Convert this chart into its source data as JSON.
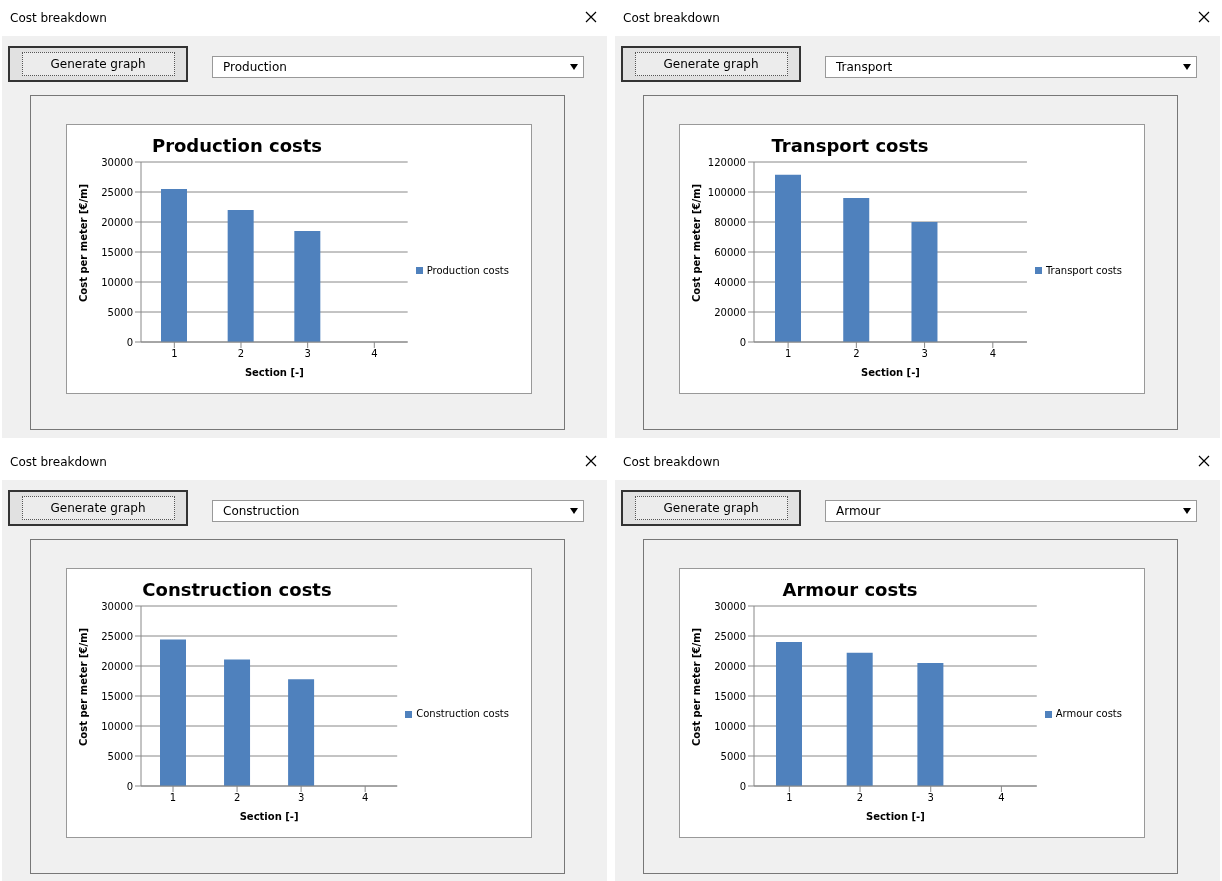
{
  "chart_data": [
    {
      "type": "bar",
      "title": "Production costs",
      "xlabel": "Section [-]",
      "ylabel": "Cost per meter [€/m]",
      "categories": [
        "1",
        "2",
        "3",
        "4"
      ],
      "series": [
        {
          "name": "Production costs",
          "color": "#4f81bd",
          "values": [
            25500,
            22000,
            18500,
            null
          ]
        }
      ],
      "ylim": [
        0,
        30000
      ],
      "yticks": [
        0,
        5000,
        10000,
        15000,
        20000,
        25000,
        30000
      ],
      "grid": "y",
      "legend": "right",
      "annotations": [
        "Cost breakdown",
        "Generate graph",
        "Production"
      ]
    },
    {
      "type": "bar",
      "title": "Transport costs",
      "xlabel": "Section [-]",
      "ylabel": "Cost per meter [€/m]",
      "categories": [
        "1",
        "2",
        "3",
        "4"
      ],
      "series": [
        {
          "name": "Transport costs",
          "color": "#4f81bd",
          "values": [
            111500,
            96000,
            80000,
            null
          ]
        }
      ],
      "ylim": [
        0,
        120000
      ],
      "yticks": [
        0,
        20000,
        40000,
        60000,
        80000,
        100000,
        120000
      ],
      "grid": "y",
      "legend": "right",
      "annotations": [
        "Cost breakdown",
        "Generate graph",
        "Transport"
      ]
    },
    {
      "type": "bar",
      "title": "Construction costs",
      "xlabel": "Section [-]",
      "ylabel": "Cost per meter [€/m]",
      "categories": [
        "1",
        "2",
        "3",
        "4"
      ],
      "series": [
        {
          "name": "Construction costs",
          "color": "#4f81bd",
          "values": [
            24400,
            21100,
            17800,
            null
          ]
        }
      ],
      "ylim": [
        0,
        30000
      ],
      "yticks": [
        0,
        5000,
        10000,
        15000,
        20000,
        25000,
        30000
      ],
      "grid": "y",
      "legend": "right",
      "annotations": [
        "Cost breakdown",
        "Generate graph",
        "Construction"
      ]
    },
    {
      "type": "bar",
      "title": "Armour costs",
      "xlabel": "Section [-]",
      "ylabel": "Cost per meter [€/m]",
      "categories": [
        "1",
        "2",
        "3",
        "4"
      ],
      "series": [
        {
          "name": "Armour costs",
          "color": "#4f81bd",
          "values": [
            24000,
            22200,
            20500,
            null
          ]
        }
      ],
      "ylim": [
        0,
        30000
      ],
      "yticks": [
        0,
        5000,
        10000,
        15000,
        20000,
        25000,
        30000
      ],
      "grid": "y",
      "legend": "right",
      "annotations": [
        "Cost breakdown",
        "Generate graph",
        "Armour"
      ]
    }
  ]
}
